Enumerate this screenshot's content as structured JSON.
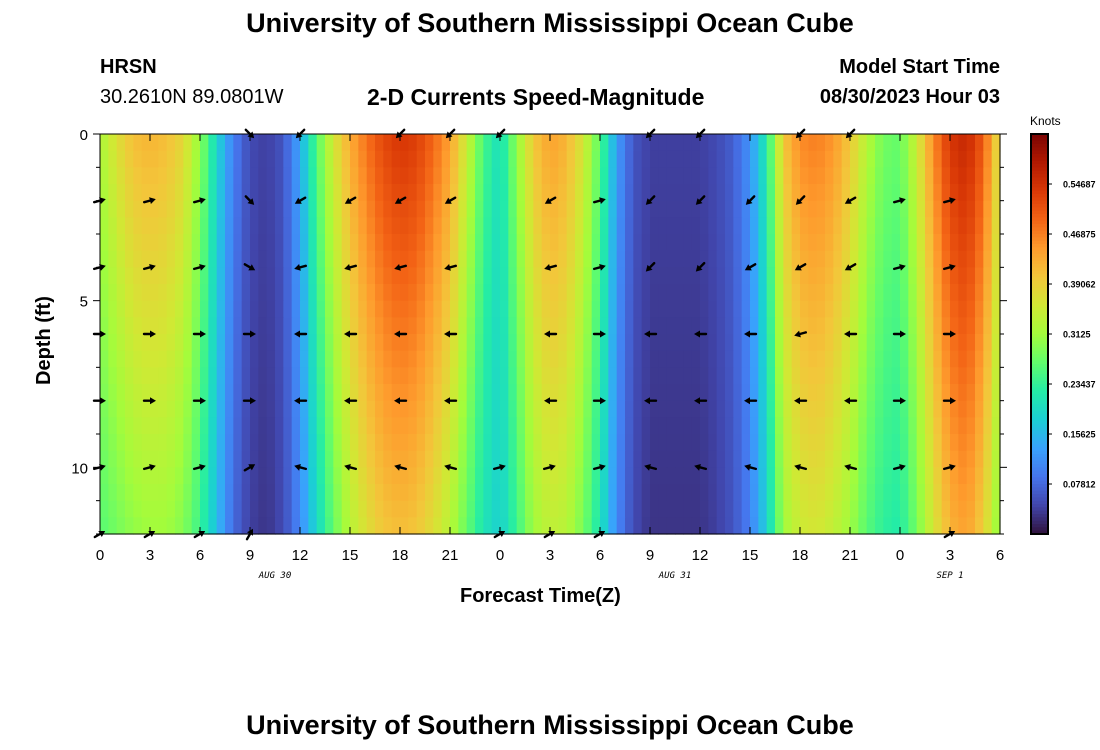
{
  "header": {
    "title": "University of Southern Mississippi Ocean Cube",
    "station": "HRSN",
    "coords": "30.2610N  89.0801W",
    "subtitle": "2-D Currents Speed-Magnitude",
    "model_start_label": "Model Start Time",
    "model_start_value": "08/30/2023 Hour 03"
  },
  "footer": {
    "title": "University of Southern Mississippi Ocean Cube"
  },
  "chart_data": {
    "type": "heatmap",
    "title": "2-D Currents Speed-Magnitude",
    "xlabel": "Forecast Time(Z)",
    "ylabel": "Depth (ft)",
    "x_tick_labels": [
      "0",
      "3",
      "6",
      "9",
      "12",
      "15",
      "18",
      "21",
      "0",
      "3",
      "6",
      "9",
      "12",
      "15",
      "18",
      "21",
      "0",
      "3",
      "6"
    ],
    "x_range_hours": [
      0,
      54
    ],
    "date_labels": [
      {
        "hour": 10.5,
        "text": "AUG 30"
      },
      {
        "hour": 34.5,
        "text": "AUG 31"
      },
      {
        "hour": 51.0,
        "text": "SEP 1"
      }
    ],
    "y_range_ft": [
      0,
      12
    ],
    "y_ticks": [
      0,
      5,
      10
    ],
    "colorbar": {
      "label": "Knots",
      "min": 0.0,
      "max": 0.625,
      "tick_values": [
        0.07812,
        0.15625,
        0.23437,
        0.3125,
        0.39062,
        0.46875,
        0.54687
      ],
      "tick_labels": [
        "0.07812",
        "0.15625",
        "0.23437",
        "0.3125",
        "0.39062",
        "0.46875",
        "0.54687"
      ],
      "colors": [
        "#30123b",
        "#4145ab",
        "#4675ed",
        "#39a2fc",
        "#1bcfd4",
        "#24eca6",
        "#61fc6c",
        "#a4fc3b",
        "#d1e834",
        "#f3c63a",
        "#fe9b2d",
        "#f36315",
        "#d93806",
        "#b11901",
        "#7a0403"
      ]
    },
    "speed_series_knots": {
      "hours": [
        0,
        1,
        2,
        3,
        4,
        5,
        6,
        7,
        8,
        9,
        10,
        11,
        12,
        13,
        14,
        15,
        16,
        17,
        18,
        19,
        20,
        21,
        22,
        23,
        24,
        25,
        26,
        27,
        28,
        29,
        30,
        31,
        32,
        33,
        34,
        35,
        36,
        37,
        38,
        39,
        40,
        41,
        42,
        43,
        44,
        45,
        46,
        47,
        48,
        49,
        50,
        51,
        52,
        53,
        54
      ],
      "surface": [
        0.32,
        0.37,
        0.41,
        0.42,
        0.41,
        0.38,
        0.3,
        0.19,
        0.1,
        0.05,
        0.04,
        0.06,
        0.14,
        0.26,
        0.36,
        0.43,
        0.48,
        0.52,
        0.54,
        0.53,
        0.49,
        0.44,
        0.35,
        0.25,
        0.2,
        0.3,
        0.4,
        0.44,
        0.42,
        0.36,
        0.26,
        0.13,
        0.06,
        0.04,
        0.04,
        0.04,
        0.04,
        0.05,
        0.07,
        0.12,
        0.22,
        0.4,
        0.46,
        0.47,
        0.45,
        0.4,
        0.33,
        0.28,
        0.27,
        0.35,
        0.46,
        0.54,
        0.56,
        0.5,
        0.36
      ],
      "bottom": [
        0.26,
        0.28,
        0.3,
        0.31,
        0.31,
        0.29,
        0.24,
        0.16,
        0.08,
        0.04,
        0.03,
        0.05,
        0.11,
        0.19,
        0.27,
        0.33,
        0.37,
        0.4,
        0.41,
        0.4,
        0.37,
        0.33,
        0.27,
        0.21,
        0.18,
        0.24,
        0.31,
        0.34,
        0.33,
        0.28,
        0.21,
        0.11,
        0.05,
        0.03,
        0.03,
        0.03,
        0.03,
        0.04,
        0.06,
        0.1,
        0.18,
        0.31,
        0.35,
        0.36,
        0.34,
        0.31,
        0.26,
        0.23,
        0.22,
        0.28,
        0.36,
        0.42,
        0.44,
        0.39,
        0.29
      ]
    },
    "arrow_hours": [
      0,
      3,
      6,
      9,
      12,
      15,
      18,
      21,
      24,
      27,
      30,
      33,
      36,
      39,
      42,
      45,
      48,
      51
    ],
    "arrow_depths_ft": [
      0,
      2,
      4,
      6,
      8,
      10,
      12
    ],
    "arrow_bearings_deg": [
      [
        null,
        null,
        null,
        135,
        225,
        null,
        225,
        225,
        225,
        null,
        null,
        225,
        225,
        null,
        225,
        225,
        null,
        null
      ],
      [
        75,
        75,
        75,
        135,
        240,
        240,
        240,
        240,
        null,
        240,
        75,
        225,
        225,
        225,
        225,
        240,
        75,
        75
      ],
      [
        75,
        75,
        75,
        120,
        255,
        255,
        255,
        255,
        null,
        255,
        75,
        225,
        225,
        240,
        240,
        240,
        75,
        75
      ],
      [
        90,
        90,
        90,
        90,
        270,
        270,
        270,
        270,
        null,
        270,
        90,
        270,
        270,
        270,
        255,
        270,
        90,
        90
      ],
      [
        90,
        90,
        90,
        90,
        270,
        270,
        270,
        270,
        null,
        270,
        90,
        270,
        270,
        270,
        270,
        270,
        90,
        90
      ],
      [
        75,
        75,
        75,
        60,
        285,
        285,
        285,
        285,
        75,
        75,
        75,
        285,
        285,
        285,
        285,
        285,
        75,
        75
      ],
      [
        60,
        60,
        60,
        30,
        null,
        null,
        null,
        null,
        60,
        60,
        60,
        null,
        null,
        null,
        null,
        null,
        null,
        60
      ]
    ]
  }
}
